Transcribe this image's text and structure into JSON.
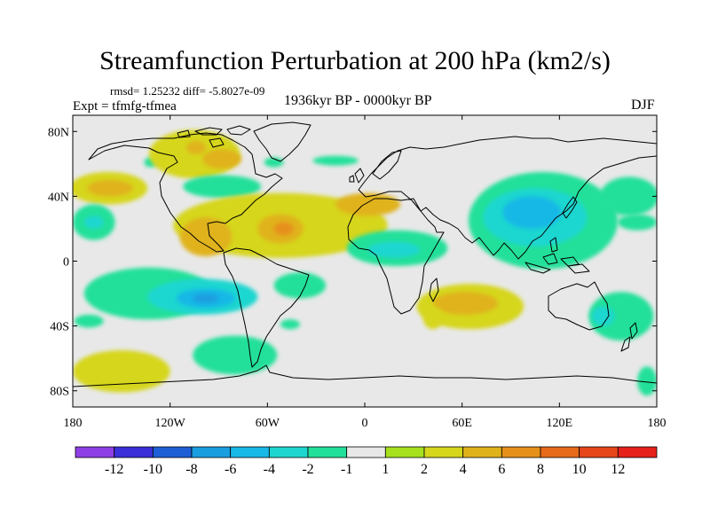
{
  "title": "Streamfunction Perturbation at 200 hPa (km2/s)",
  "stats": "rmsd= 1.25232 diff= -5.8027e-09",
  "experiment": "Expt = tfmfg-tfmea",
  "period": "1936kyr BP - 0000kyr BP",
  "season": "DJF",
  "map_extent": {
    "lon": [
      -180,
      180
    ],
    "lat": [
      -90,
      90
    ]
  },
  "axis": {
    "x_ticks": [
      {
        "lon": -180,
        "label": "180"
      },
      {
        "lon": -120,
        "label": "120W"
      },
      {
        "lon": -60,
        "label": "60W"
      },
      {
        "lon": 0,
        "label": "0"
      },
      {
        "lon": 60,
        "label": "60E"
      },
      {
        "lon": 120,
        "label": "120E"
      },
      {
        "lon": 180,
        "label": "180"
      }
    ],
    "y_ticks": [
      {
        "lat": 80,
        "label": "80N"
      },
      {
        "lat": 40,
        "label": "40N"
      },
      {
        "lat": 0,
        "label": "0"
      },
      {
        "lat": -40,
        "label": "40S"
      },
      {
        "lat": -80,
        "label": "80S"
      }
    ]
  },
  "colorbar": {
    "colors": [
      "#8f3fe6",
      "#3a2fd8",
      "#1f5fd6",
      "#1a9ee0",
      "#19b8e6",
      "#1ed6d0",
      "#22e09a",
      "#e8e8e8",
      "#a6e01e",
      "#d6d61c",
      "#e0b21a",
      "#e6901a",
      "#e66a1a",
      "#e6461a",
      "#e6201a"
    ],
    "labels": [
      "-12",
      "-10",
      "-8",
      "-6",
      "-4",
      "-2",
      "-1",
      "1",
      "2",
      "4",
      "6",
      "8",
      "10",
      "12"
    ]
  },
  "anomalies": [
    {
      "lon": -132,
      "lat": 61,
      "rlon": 4,
      "rlat": 3,
      "level": "-1"
    },
    {
      "lon": -56,
      "lat": 61,
      "rlon": 6,
      "rlat": 3,
      "level": "-1"
    },
    {
      "lon": -18,
      "lat": 62,
      "rlon": 14,
      "rlat": 3,
      "level": "-1"
    },
    {
      "lon": -105,
      "lat": 66,
      "rlon": 28,
      "rlat": 15,
      "level": "2"
    },
    {
      "lon": -88,
      "lat": 63,
      "rlon": 12,
      "rlat": 6,
      "level": "4"
    },
    {
      "lon": -104,
      "lat": 70,
      "rlon": 6,
      "rlat": 4,
      "level": "4"
    },
    {
      "lon": -158,
      "lat": 45,
      "rlon": 24,
      "rlat": 10,
      "level": "2"
    },
    {
      "lon": -157,
      "lat": 45,
      "rlon": 14,
      "rlat": 5,
      "level": "4"
    },
    {
      "lon": -88,
      "lat": 46,
      "rlon": 24,
      "rlat": 7,
      "level": "-1"
    },
    {
      "lon": -167,
      "lat": 24,
      "rlon": 13,
      "rlat": 11,
      "level": "-1"
    },
    {
      "lon": -167,
      "lat": 24,
      "rlon": 6,
      "rlat": 4,
      "level": "-2"
    },
    {
      "lon": -52,
      "lat": 22,
      "rlon": 66,
      "rlat": 20,
      "level": "2"
    },
    {
      "lon": -98,
      "lat": 15,
      "rlon": 16,
      "rlat": 12,
      "level": "4"
    },
    {
      "lon": -52,
      "lat": 20,
      "rlon": 14,
      "rlat": 9,
      "level": "4"
    },
    {
      "lon": -50,
      "lat": 20,
      "rlon": 6,
      "rlat": 4,
      "level": "6"
    },
    {
      "lon": 2,
      "lat": 35,
      "rlon": 20,
      "rlat": 7,
      "level": "4"
    },
    {
      "lon": 20,
      "lat": 8,
      "rlon": 31,
      "rlat": 11,
      "level": "-1"
    },
    {
      "lon": 18,
      "lat": 7,
      "rlon": 16,
      "rlat": 5,
      "level": "-2"
    },
    {
      "lon": 110,
      "lat": 25,
      "rlon": 46,
      "rlat": 30,
      "level": "-1"
    },
    {
      "lon": 105,
      "lat": 27,
      "rlon": 32,
      "rlat": 18,
      "level": "-2"
    },
    {
      "lon": 103,
      "lat": 30,
      "rlon": 18,
      "rlat": 10,
      "level": "-4"
    },
    {
      "lon": 163,
      "lat": 40,
      "rlon": 18,
      "rlat": 12,
      "level": "-1"
    },
    {
      "lon": 168,
      "lat": 24,
      "rlon": 12,
      "rlat": 5,
      "level": "-1"
    },
    {
      "lon": -133,
      "lat": -20,
      "rlon": 40,
      "rlat": 16,
      "level": "-1"
    },
    {
      "lon": -100,
      "lat": -22,
      "rlon": 34,
      "rlat": 11,
      "level": "-2"
    },
    {
      "lon": -98,
      "lat": -23,
      "rlon": 18,
      "rlat": 6,
      "level": "-4"
    },
    {
      "lon": -98,
      "lat": -23,
      "rlon": 8,
      "rlat": 3,
      "level": "-6"
    },
    {
      "lon": -170,
      "lat": -37,
      "rlon": 9,
      "rlat": 4,
      "level": "-1"
    },
    {
      "lon": -40,
      "lat": -15,
      "rlon": 16,
      "rlat": 8,
      "level": "-1"
    },
    {
      "lon": -80,
      "lat": -58,
      "rlon": 26,
      "rlat": 12,
      "level": "-1"
    },
    {
      "lon": -46,
      "lat": -39,
      "rlon": 6,
      "rlat": 3,
      "level": "-1"
    },
    {
      "lon": -150,
      "lat": -68,
      "rlon": 30,
      "rlat": 13,
      "level": "2"
    },
    {
      "lon": 65,
      "lat": -28,
      "rlon": 33,
      "rlat": 14,
      "level": "2"
    },
    {
      "lon": 62,
      "lat": -26,
      "rlon": 20,
      "rlat": 7,
      "level": "4"
    },
    {
      "lon": 42,
      "lat": -35,
      "rlon": 6,
      "rlat": 7,
      "level": "2"
    },
    {
      "lon": 158,
      "lat": -34,
      "rlon": 20,
      "rlat": 15,
      "level": "-1"
    },
    {
      "lon": 147,
      "lat": -34,
      "rlon": 7,
      "rlat": 6,
      "level": "-2"
    },
    {
      "lon": 174,
      "lat": -74,
      "rlon": 6,
      "rlat": 9,
      "level": "-1"
    }
  ]
}
